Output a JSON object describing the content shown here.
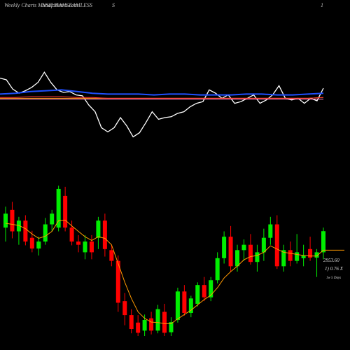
{
  "header": {
    "left": "Weekly Charts MunafaSutra.com",
    "overlay": "NSE:MAHSEAMLESS",
    "mid": "S",
    "right": "1"
  },
  "chart_data": [
    {
      "type": "line",
      "ylim": [
        0,
        100
      ],
      "series": [
        {
          "color": "#ffffff",
          "width": 1.3,
          "values": [
            82,
            80,
            69,
            64,
            67,
            71,
            77,
            89,
            77,
            68,
            65,
            66,
            62,
            61,
            50,
            42,
            23,
            18,
            23,
            35,
            25,
            12,
            17,
            29,
            42,
            33,
            35,
            36,
            40,
            42,
            48,
            52,
            54,
            68,
            64,
            58,
            62,
            52,
            54,
            58,
            62,
            52,
            56,
            62,
            73,
            58,
            56,
            58,
            52,
            58,
            55,
            70
          ]
        },
        {
          "color": "#1f4fff",
          "width": 2,
          "values": [
            63,
            64,
            66,
            67,
            68,
            66,
            64,
            63,
            63,
            63,
            62,
            63,
            63,
            62,
            62,
            62,
            63,
            63,
            62,
            62,
            63,
            64
          ]
        },
        {
          "color": "#ff9900",
          "width": 1,
          "values": [
            58,
            58,
            58,
            58,
            58,
            58,
            58,
            58,
            58,
            58,
            58,
            58,
            58,
            58,
            58,
            58,
            58,
            58,
            58,
            58,
            58,
            59
          ]
        },
        {
          "color": "#ff3333",
          "width": 1,
          "values": [
            59,
            59,
            60,
            60,
            60,
            59,
            59,
            58,
            58,
            58,
            58,
            58,
            58,
            58,
            58,
            58,
            58,
            58,
            58,
            58,
            58,
            59
          ]
        },
        {
          "color": "#ff88cc",
          "width": 1,
          "values": [
            57,
            57,
            57,
            57,
            57,
            57,
            57,
            57,
            57,
            57,
            57,
            57,
            57,
            57,
            57,
            57,
            57,
            57,
            57,
            57,
            57,
            57
          ]
        }
      ]
    },
    {
      "type": "candlestick",
      "ylim": [
        1000,
        4000
      ],
      "up_color": "#00ee00",
      "down_color": "#ff0000",
      "ma_color": "#ff9900",
      "open": [
        3020,
        3350,
        2950,
        3150,
        2830,
        2630,
        2760,
        3080,
        3020,
        3610,
        3020,
        2760,
        2560,
        2760,
        2830,
        3150,
        2600,
        2400,
        1650,
        1390,
        1250,
        1100,
        1330,
        1100,
        1450,
        1070,
        1300,
        1830,
        1430,
        1600,
        1950,
        1720,
        2040,
        2450,
        2850,
        2300,
        2600,
        2700,
        2380,
        2560,
        2830,
        3080,
        2300,
        2600,
        2400,
        2450,
        2620,
        2460,
        2560
      ],
      "high": [
        3410,
        3500,
        3220,
        3250,
        2960,
        2850,
        3200,
        3350,
        3800,
        3780,
        3150,
        2880,
        2880,
        2880,
        3220,
        3280,
        2700,
        2500,
        1800,
        1500,
        1390,
        1400,
        1450,
        1580,
        1600,
        1350,
        1900,
        1950,
        1750,
        2000,
        2100,
        2100,
        2560,
        2950,
        3050,
        2700,
        2800,
        2900,
        2700,
        3000,
        3220,
        3250,
        2700,
        2760,
        2900,
        2700,
        2850,
        2620,
        3020
      ],
      "low": [
        2760,
        2820,
        2700,
        2690,
        2560,
        2500,
        2700,
        2950,
        2950,
        2950,
        2690,
        2560,
        2430,
        2430,
        2620,
        2480,
        2300,
        1450,
        1200,
        1050,
        1000,
        1000,
        1030,
        1050,
        1000,
        1000,
        1250,
        1380,
        1350,
        1550,
        1650,
        1650,
        1980,
        2350,
        2200,
        2200,
        2400,
        2330,
        2200,
        2400,
        2700,
        2250,
        2200,
        2300,
        2350,
        2300,
        2400,
        2100,
        2430
      ],
      "close": [
        3280,
        2950,
        3150,
        2760,
        2630,
        2760,
        3080,
        3280,
        3740,
        3020,
        2760,
        2700,
        2760,
        2560,
        3150,
        2620,
        2400,
        1620,
        1390,
        1130,
        1060,
        1300,
        1100,
        1500,
        1060,
        1260,
        1830,
        1430,
        1700,
        1950,
        1720,
        2040,
        2450,
        2850,
        2300,
        2600,
        2700,
        2380,
        2560,
        2830,
        3080,
        2300,
        2600,
        2400,
        2560,
        2500,
        2460,
        2560,
        2953.6
      ],
      "ma": [
        3100,
        3080,
        3060,
        3000,
        2900,
        2820,
        2860,
        2950,
        3150,
        3160,
        3050,
        2950,
        2850,
        2780,
        2850,
        2820,
        2700,
        2350,
        2000,
        1700,
        1450,
        1330,
        1260,
        1250,
        1230,
        1230,
        1320,
        1400,
        1480,
        1580,
        1680,
        1760,
        1900,
        2080,
        2200,
        2300,
        2420,
        2480,
        2500,
        2560,
        2680,
        2620,
        2560,
        2540,
        2520,
        2500,
        2490,
        2490,
        2600
      ],
      "last_price": "2953.60",
      "change": "1) 0.76  X",
      "period": "1w 5 Days"
    }
  ]
}
